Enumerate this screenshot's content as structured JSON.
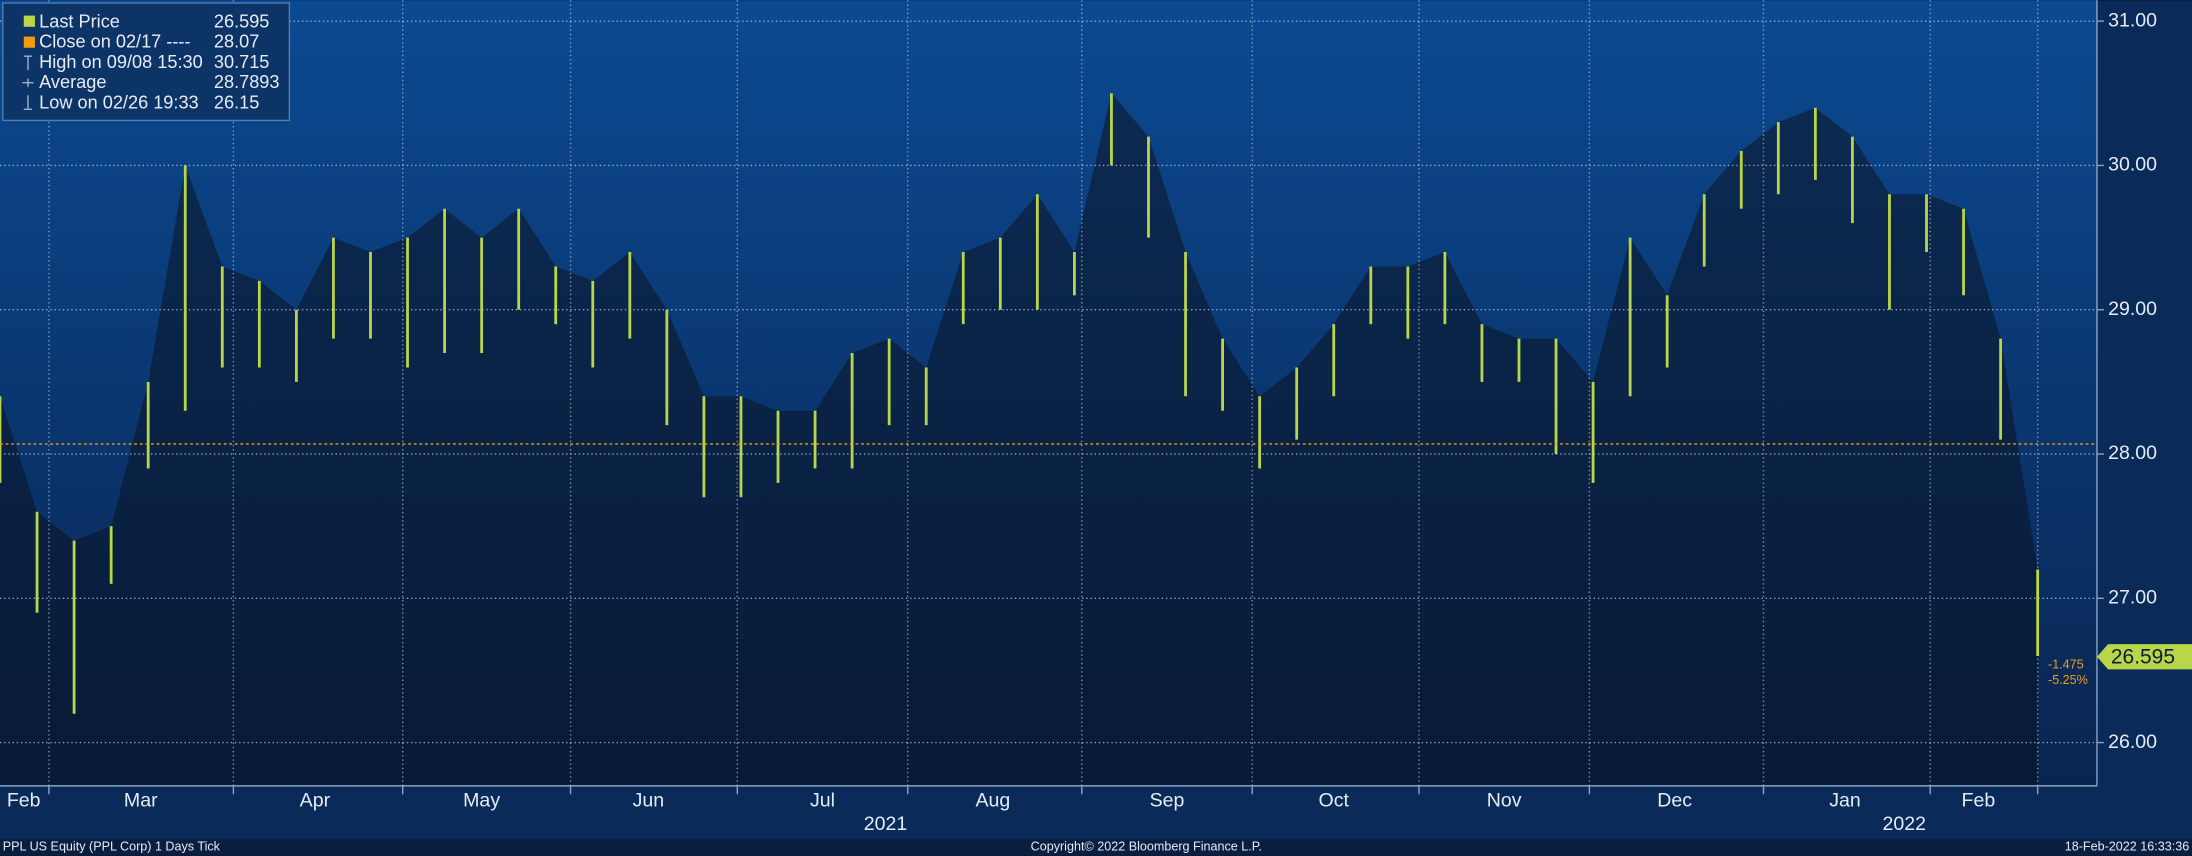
{
  "chart_data": {
    "type": "range-bar",
    "color": "#b9d548",
    "close_color": "#f39c12",
    "legend": [
      {
        "label": "Last Price",
        "value": 26.595
      },
      {
        "label": "Close on 02/17 ----",
        "value": 28.07
      },
      {
        "label": "High on 09/08 15:30",
        "value": 30.715
      },
      {
        "label": "Average",
        "value": 28.7893
      },
      {
        "label": "Low on 02/26 19:33",
        "value": 26.15
      }
    ],
    "change": -1.475,
    "change_pct": {
      "value": -5.25,
      "label": "-5.25%"
    },
    "high": [
      28.4,
      27.6,
      27.4,
      27.5,
      28.5,
      30.0,
      29.3,
      29.2,
      29.0,
      29.5,
      29.4,
      29.5,
      29.7,
      29.5,
      29.7,
      29.3,
      29.2,
      29.4,
      29.0,
      28.4,
      28.4,
      28.3,
      28.3,
      28.7,
      28.8,
      28.6,
      29.4,
      29.5,
      29.8,
      29.4,
      30.5,
      30.2,
      29.4,
      28.8,
      28.4,
      28.6,
      28.9,
      29.3,
      29.3,
      29.4,
      28.9,
      28.8,
      28.8,
      28.5,
      29.5,
      29.1,
      29.8,
      30.1,
      30.3,
      30.4,
      30.2,
      29.8,
      29.8,
      29.7,
      28.8,
      27.2
    ],
    "low": [
      27.8,
      26.9,
      26.2,
      27.1,
      27.9,
      28.3,
      28.6,
      28.6,
      28.5,
      28.8,
      28.8,
      28.6,
      28.7,
      28.7,
      29.0,
      28.9,
      28.6,
      28.8,
      28.2,
      27.7,
      27.7,
      27.8,
      27.9,
      27.9,
      28.2,
      28.2,
      28.9,
      29.0,
      29.0,
      29.1,
      30.0,
      29.5,
      28.4,
      28.3,
      27.9,
      28.1,
      28.4,
      28.9,
      28.8,
      28.9,
      28.5,
      28.5,
      28.0,
      27.8,
      28.4,
      28.6,
      29.3,
      29.7,
      29.8,
      29.9,
      29.6,
      29.0,
      29.4,
      29.1,
      28.1,
      26.6
    ],
    "xlim": [
      0,
      56.6
    ],
    "xticks": [
      1.32,
      6.3,
      10.87,
      15.4,
      19.9,
      24.5,
      29.2,
      33.8,
      38.3,
      42.9,
      47.6,
      52.1,
      55.0
    ],
    "months": [
      {
        "value": 0.64,
        "label": "Feb"
      },
      {
        "value": 3.8,
        "label": "Mar"
      },
      {
        "value": 8.5,
        "label": "Apr"
      },
      {
        "value": 13.0,
        "label": "May"
      },
      {
        "value": 17.5,
        "label": "Jun"
      },
      {
        "value": 22.2,
        "label": "Jul"
      },
      {
        "value": 26.8,
        "label": "Aug"
      },
      {
        "value": 31.5,
        "label": "Sep"
      },
      {
        "value": 36.0,
        "label": "Oct"
      },
      {
        "value": 40.6,
        "label": "Nov"
      },
      {
        "value": 45.2,
        "label": "Dec"
      },
      {
        "value": 49.8,
        "label": "Jan"
      },
      {
        "value": 53.4,
        "label": "Feb"
      }
    ],
    "years": [
      {
        "value": 23.9,
        "label": "2021"
      },
      {
        "value": 51.4,
        "label": "2022"
      }
    ],
    "ylim": [
      25.7,
      31.145
    ],
    "yticks": [
      {
        "value": 26,
        "label": "26.00"
      },
      {
        "value": 27,
        "label": "27.00"
      },
      {
        "value": 28,
        "label": "28.00"
      },
      {
        "value": 29,
        "label": "29.00"
      },
      {
        "value": 30,
        "label": "30.00"
      },
      {
        "value": 31,
        "label": "31.00"
      }
    ],
    "grid": true,
    "footer_left": "PPL US Equity (PPL Corp) 1 Days  Tick",
    "footer_center": "Copyright© 2022 Bloomberg Finance L.P.",
    "footer_right": "18-Feb-2022 16:33:36"
  }
}
